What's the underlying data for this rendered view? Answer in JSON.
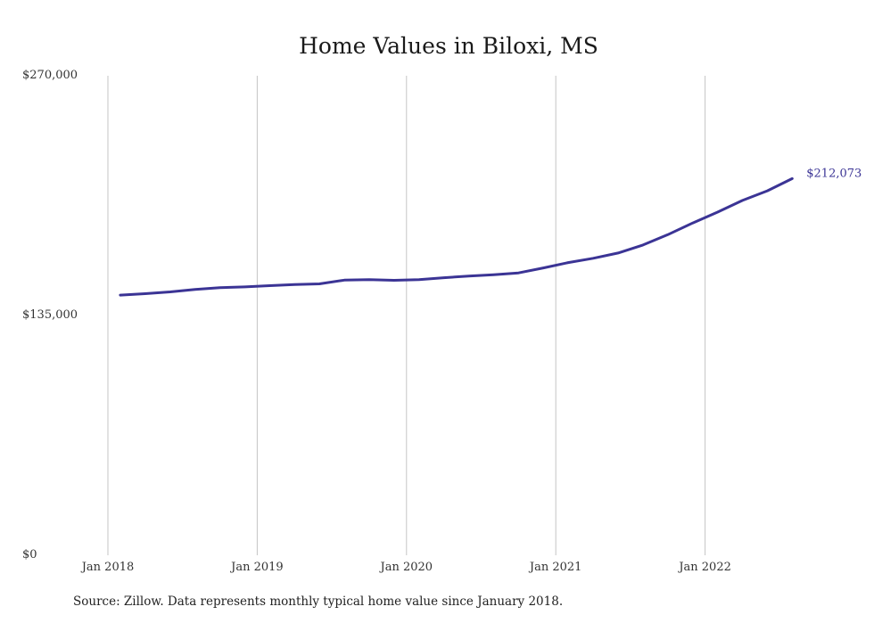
{
  "chart_data": {
    "type": "line",
    "title": "Home Values in Biloxi, MS",
    "xlabel": "",
    "ylabel": "",
    "ylim": [
      0,
      270000
    ],
    "yticks": [
      {
        "value": 0,
        "label": "$0"
      },
      {
        "value": 135000,
        "label": "$135,000"
      },
      {
        "value": 270000,
        "label": "$270,000"
      }
    ],
    "xticks": [
      {
        "value": "2018-01",
        "label": "Jan 2018"
      },
      {
        "value": "2019-01",
        "label": "Jan 2019"
      },
      {
        "value": "2020-01",
        "label": "Jan 2020"
      },
      {
        "value": "2021-01",
        "label": "Jan 2021"
      },
      {
        "value": "2022-01",
        "label": "Jan 2022"
      }
    ],
    "grid": "vertical",
    "series": [
      {
        "color": "#3b3495",
        "end_label": "$212,073",
        "points": [
          [
            "2018-02",
            146500
          ],
          [
            "2018-04",
            147300
          ],
          [
            "2018-06",
            148300
          ],
          [
            "2018-08",
            149700
          ],
          [
            "2018-10",
            150700
          ],
          [
            "2018-12",
            151100
          ],
          [
            "2019-02",
            151800
          ],
          [
            "2019-04",
            152400
          ],
          [
            "2019-06",
            152800
          ],
          [
            "2019-08",
            154900
          ],
          [
            "2019-10",
            155200
          ],
          [
            "2019-12",
            154800
          ],
          [
            "2020-02",
            155200
          ],
          [
            "2020-04",
            156300
          ],
          [
            "2020-06",
            157200
          ],
          [
            "2020-08",
            158000
          ],
          [
            "2020-10",
            159000
          ],
          [
            "2020-12",
            161800
          ],
          [
            "2021-02",
            164800
          ],
          [
            "2021-04",
            167200
          ],
          [
            "2021-06",
            170200
          ],
          [
            "2021-08",
            174700
          ],
          [
            "2021-10",
            180500
          ],
          [
            "2021-12",
            187100
          ],
          [
            "2022-02",
            193200
          ],
          [
            "2022-04",
            199800
          ],
          [
            "2022-06",
            205200
          ],
          [
            "2022-08",
            212073
          ]
        ]
      }
    ]
  },
  "footer": {
    "source": "Source: Zillow. Data represents monthly typical home value since January 2018."
  }
}
